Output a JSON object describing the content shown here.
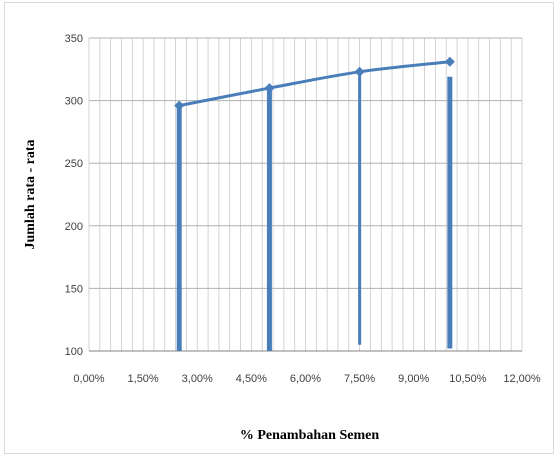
{
  "chart_data": {
    "type": "line",
    "xlabel": "% Penambahan Semen",
    "ylabel": "Jumlah rata - rata",
    "x_tick_labels": [
      "0,00%",
      "1,50%",
      "3,00%",
      "4,50%",
      "6,00%",
      "7,50%",
      "9,00%",
      "10,50%",
      "12,00%"
    ],
    "y_tick_labels": [
      "100",
      "150",
      "200",
      "250",
      "300",
      "350"
    ],
    "xlim": [
      0,
      12
    ],
    "ylim": [
      100,
      350
    ],
    "grid": true,
    "series": [
      {
        "x": [
          2.5,
          5.0,
          7.5,
          10.0
        ],
        "y": [
          296,
          310,
          323,
          331
        ],
        "color": "#4a7ebb"
      }
    ],
    "drop_lines": [
      {
        "x": 2.5,
        "y_top": 296,
        "y_bottom": 100
      },
      {
        "x": 5.0,
        "y_top": 310,
        "y_bottom": 100
      },
      {
        "x": 7.5,
        "y_top": 323,
        "y_bottom": 105
      },
      {
        "x": 10.0,
        "y_top": 319,
        "y_bottom": 102
      }
    ]
  }
}
